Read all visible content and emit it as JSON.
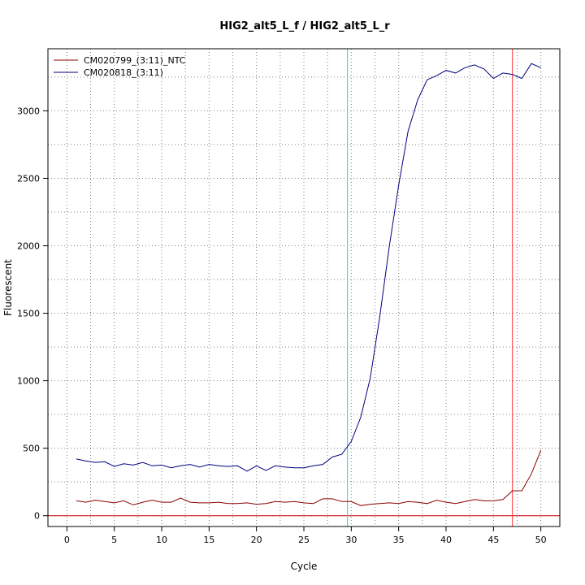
{
  "chart_data": {
    "type": "line",
    "title": "HIG2_alt5_L_f / HIG2_alt5_L_r",
    "xlabel": "Cycle",
    "ylabel": "Fluorescent",
    "xlim": [
      -2,
      52
    ],
    "ylim": [
      -80,
      3460
    ],
    "x_ticks": [
      0,
      5,
      10,
      15,
      20,
      25,
      30,
      35,
      40,
      45,
      50
    ],
    "y_ticks": [
      0,
      500,
      1000,
      1500,
      2000,
      2500,
      3000
    ],
    "grid": "dotted",
    "legend_position": "top-left",
    "threshold": {
      "value": 0,
      "color": "#cc0000"
    },
    "vlines": [
      {
        "x": 29.6,
        "color": "#00e5e5"
      },
      {
        "x": 47.0,
        "color": "#ff3333"
      }
    ],
    "x": [
      1,
      2,
      3,
      4,
      5,
      6,
      7,
      8,
      9,
      10,
      11,
      12,
      13,
      14,
      15,
      16,
      17,
      18,
      19,
      20,
      21,
      22,
      23,
      24,
      25,
      26,
      27,
      28,
      29,
      30,
      31,
      32,
      33,
      34,
      35,
      36,
      37,
      38,
      39,
      40,
      41,
      42,
      43,
      44,
      45,
      46,
      47,
      48,
      49,
      50
    ],
    "series": [
      {
        "name": "CM020799_(3:11)_NTC",
        "color": "#8b0000",
        "values": [
          110,
          100,
          115,
          105,
          95,
          110,
          80,
          100,
          115,
          100,
          100,
          130,
          100,
          95,
          95,
          100,
          90,
          90,
          95,
          85,
          90,
          105,
          100,
          105,
          95,
          90,
          125,
          125,
          105,
          105,
          75,
          85,
          90,
          95,
          90,
          105,
          100,
          90,
          115,
          100,
          90,
          105,
          120,
          110,
          110,
          120,
          185,
          185,
          310,
          485
        ]
      },
      {
        "name": "CM020818_(3:11)",
        "color": "#000080",
        "values": [
          420,
          405,
          395,
          400,
          365,
          385,
          375,
          395,
          370,
          375,
          355,
          370,
          380,
          360,
          380,
          370,
          365,
          370,
          330,
          370,
          335,
          370,
          360,
          355,
          355,
          370,
          380,
          435,
          455,
          550,
          730,
          1020,
          1470,
          1990,
          2450,
          2850,
          3080,
          3230,
          3260,
          3300,
          3280,
          3320,
          3340,
          3310,
          3240,
          3280,
          3270,
          3240,
          3350,
          3320
        ]
      }
    ]
  }
}
